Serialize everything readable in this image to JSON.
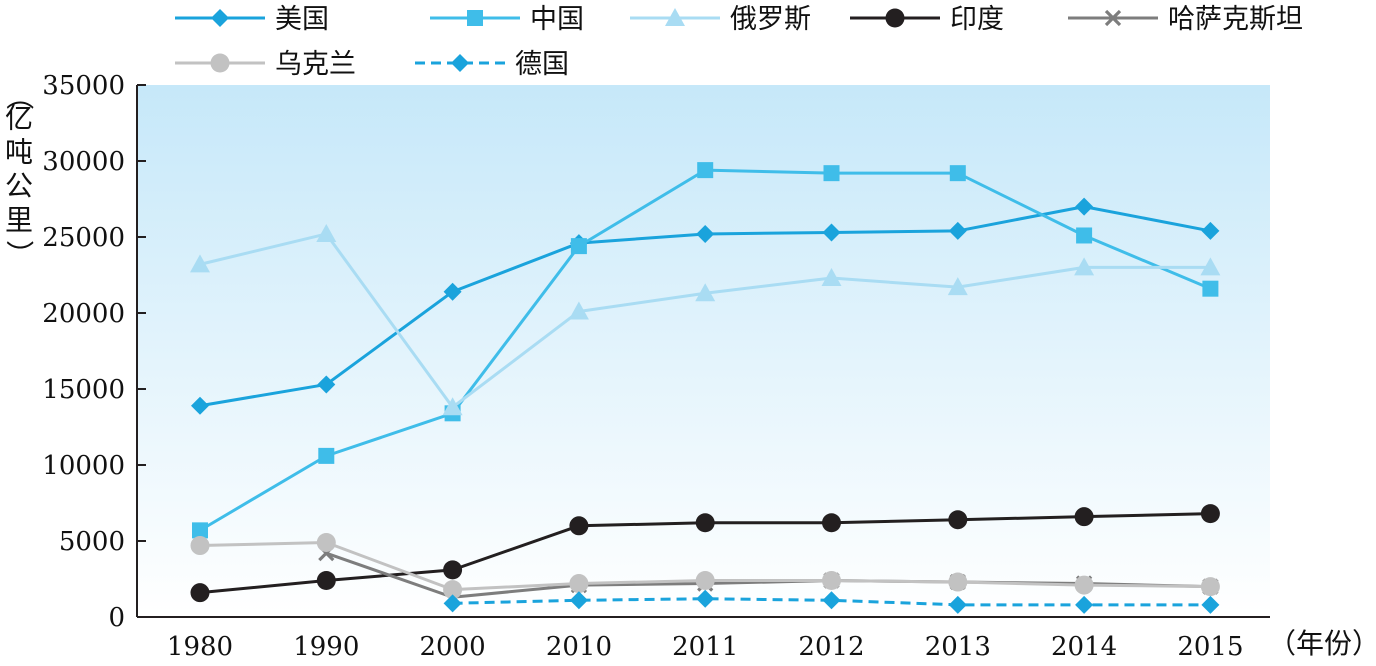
{
  "chart_data": {
    "type": "line",
    "title": "",
    "xlabel": "（年份）",
    "ylabel": "（亿吨公里）",
    "categories": [
      "1980",
      "1990",
      "2000",
      "2010",
      "2011",
      "2012",
      "2013",
      "2014",
      "2015"
    ],
    "ylim": [
      0,
      35000
    ],
    "yticks": [
      "0",
      "5000",
      "10000",
      "15000",
      "20000",
      "25000",
      "30000",
      "35000"
    ],
    "grid": false,
    "background": "light blue gradient",
    "legend_placement": "top",
    "series": [
      {
        "name": "美国",
        "color": "#1aa3dc",
        "marker": "diamond",
        "dash": false,
        "values": [
          13900,
          15300,
          21400,
          24600,
          25200,
          25300,
          25400,
          27000,
          25400
        ]
      },
      {
        "name": "中国",
        "color": "#3fbde9",
        "marker": "square",
        "dash": false,
        "values": [
          5700,
          10600,
          13400,
          24400,
          29400,
          29200,
          29200,
          25100,
          21600
        ]
      },
      {
        "name": "俄罗斯",
        "color": "#a9dcf3",
        "marker": "triangle",
        "dash": false,
        "values": [
          23200,
          25200,
          13800,
          20100,
          21300,
          22300,
          21700,
          23000,
          23000
        ]
      },
      {
        "name": "印度",
        "color": "#231f20",
        "marker": "circle",
        "dash": false,
        "values": [
          1600,
          2400,
          3100,
          6000,
          6200,
          6200,
          6400,
          6600,
          6800
        ]
      },
      {
        "name": "哈萨克斯坦",
        "color": "#7d7d7d",
        "marker": "x",
        "dash": false,
        "values": [
          null,
          4200,
          1300,
          2100,
          2200,
          2400,
          2300,
          2200,
          2000
        ]
      },
      {
        "name": "乌克兰",
        "color": "#c2c2c2",
        "marker": "circle",
        "dash": false,
        "values": [
          4700,
          4900,
          1800,
          2200,
          2400,
          2400,
          2300,
          2100,
          2000
        ]
      },
      {
        "name": "德国",
        "color": "#1aa3dc",
        "marker": "diamond",
        "dash": true,
        "values": [
          null,
          null,
          900,
          1100,
          1200,
          1100,
          800,
          800,
          800
        ]
      }
    ]
  }
}
